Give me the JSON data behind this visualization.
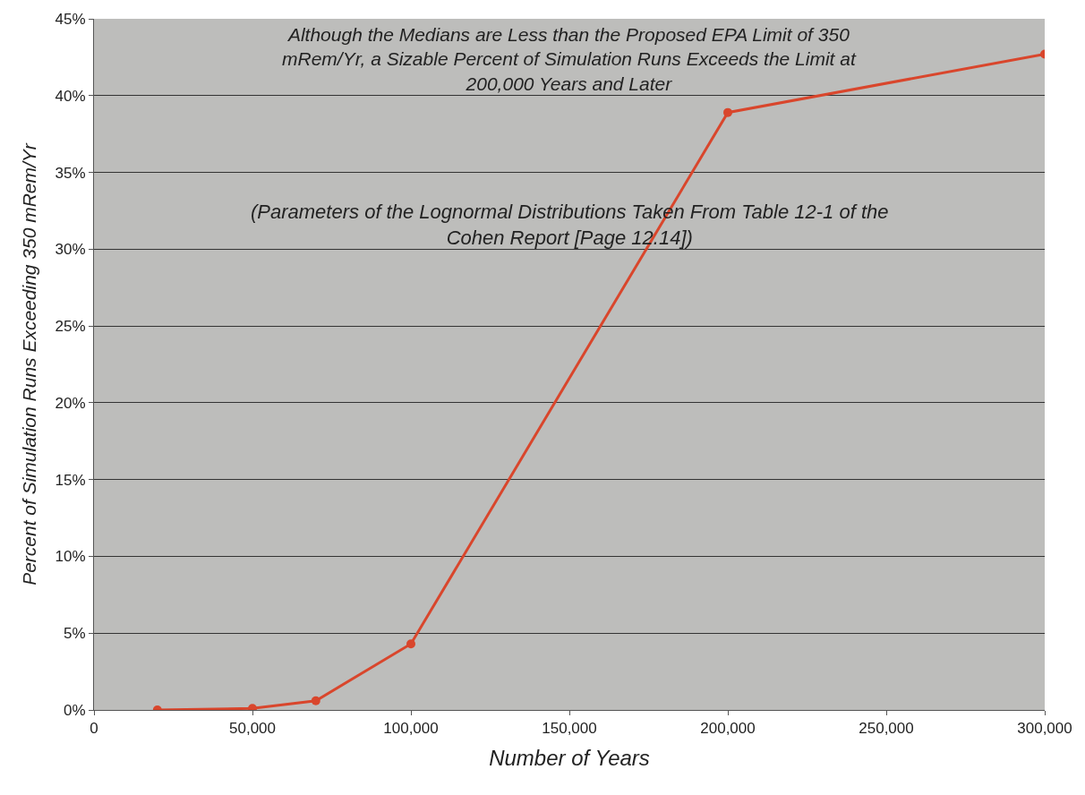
{
  "chart_data": {
    "type": "line",
    "title": "Although the Medians are Less than the Proposed EPA Limit of 350 mRem/Yr, a Sizable Percent of Simulation Runs Exceeds the Limit at 200,000 Years and Later",
    "subtitle": "(Parameters of the Lognormal Distributions Taken From Table 12-1 of the Cohen Report [Page 12.14])",
    "xlabel": "Number of Years",
    "ylabel": "Percent of Simulation Runs Exceeding 350 mRem/Yr",
    "x": [
      20000,
      50000,
      70000,
      100000,
      200000,
      300000
    ],
    "series": [
      {
        "color": "#d9462c",
        "values": [
          0.0,
          0.1,
          0.6,
          4.3,
          38.9,
          42.7
        ]
      }
    ],
    "xlim": [
      0,
      300000
    ],
    "xticks": [
      0,
      {
        "value": 50000,
        "label": "50,000"
      },
      {
        "value": 100000,
        "label": "100,000"
      },
      {
        "value": 150000,
        "label": "150,000"
      },
      {
        "value": 200000,
        "label": "200,000"
      },
      {
        "value": 250000,
        "label": "250,000"
      },
      {
        "value": 300000,
        "label": "300,000"
      }
    ],
    "ylim": [
      0,
      45
    ],
    "yticks": [
      {
        "value": 0,
        "label": "0%"
      },
      {
        "value": 5,
        "label": "5%"
      },
      {
        "value": 10,
        "label": "10%"
      },
      {
        "value": 15,
        "label": "15%"
      },
      {
        "value": 20,
        "label": "20%"
      },
      {
        "value": 25,
        "label": "25%"
      },
      {
        "value": 30,
        "label": "30%"
      },
      {
        "value": 35,
        "label": "35%"
      },
      {
        "value": 40,
        "label": "40%"
      },
      {
        "value": 45,
        "label": "45%"
      }
    ],
    "grid": "y",
    "marker": "circle",
    "line_style": "solid"
  }
}
